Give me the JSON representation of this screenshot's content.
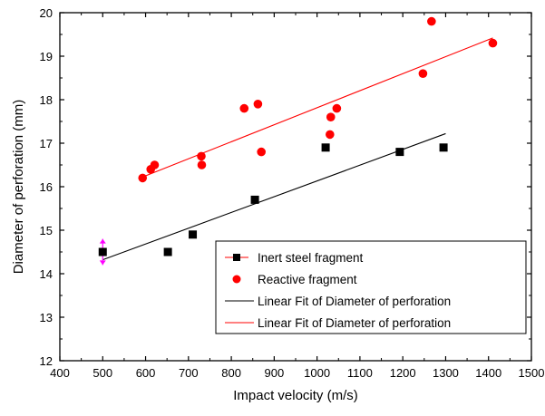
{
  "chart_data": {
    "type": "scatter",
    "xlabel": "Impact velocity (m/s)",
    "ylabel": "Diameter of perforation (mm)",
    "xlim": [
      400,
      1500
    ],
    "ylim": [
      12,
      20
    ],
    "xticks": [
      400,
      500,
      600,
      700,
      800,
      900,
      1000,
      1100,
      1200,
      1300,
      1400,
      1500
    ],
    "yticks": [
      12,
      13,
      14,
      15,
      16,
      17,
      18,
      19,
      20
    ],
    "grid": false,
    "legend_position": "bottom-right",
    "series": [
      {
        "name": "Inert steel fragment",
        "marker": "square",
        "color": "#000000",
        "points": [
          [
            500,
            14.5
          ],
          [
            652,
            14.5
          ],
          [
            710,
            14.9
          ],
          [
            855,
            15.7
          ],
          [
            1020,
            16.9
          ],
          [
            1193,
            16.8
          ],
          [
            1295,
            16.9
          ]
        ]
      },
      {
        "name": "Reactive fragment",
        "marker": "circle",
        "color": "#ff0000",
        "points": [
          [
            593,
            16.2
          ],
          [
            612,
            16.4
          ],
          [
            621,
            16.5
          ],
          [
            730,
            16.7
          ],
          [
            731,
            16.5
          ],
          [
            830,
            17.8
          ],
          [
            862,
            17.9
          ],
          [
            870,
            16.8
          ],
          [
            1030,
            17.2
          ],
          [
            1032,
            17.6
          ],
          [
            1046,
            17.8
          ],
          [
            1247,
            18.6
          ],
          [
            1267,
            19.8
          ],
          [
            1410,
            19.3
          ]
        ]
      },
      {
        "name": "Linear Fit of Diameter of perforation",
        "type": "line",
        "color": "#000000",
        "points": [
          [
            500,
            14.32
          ],
          [
            1300,
            17.22
          ]
        ]
      },
      {
        "name": "Linear Fit of Diameter of perforation",
        "type": "line",
        "color": "#ff0000",
        "points": [
          [
            600,
            16.25
          ],
          [
            1410,
            19.42
          ]
        ]
      }
    ],
    "annotations": [
      {
        "type": "vertical-error-bar",
        "x": 500,
        "y_low": 14.2,
        "y_high": 14.8,
        "color": "#ff00ff"
      }
    ]
  }
}
